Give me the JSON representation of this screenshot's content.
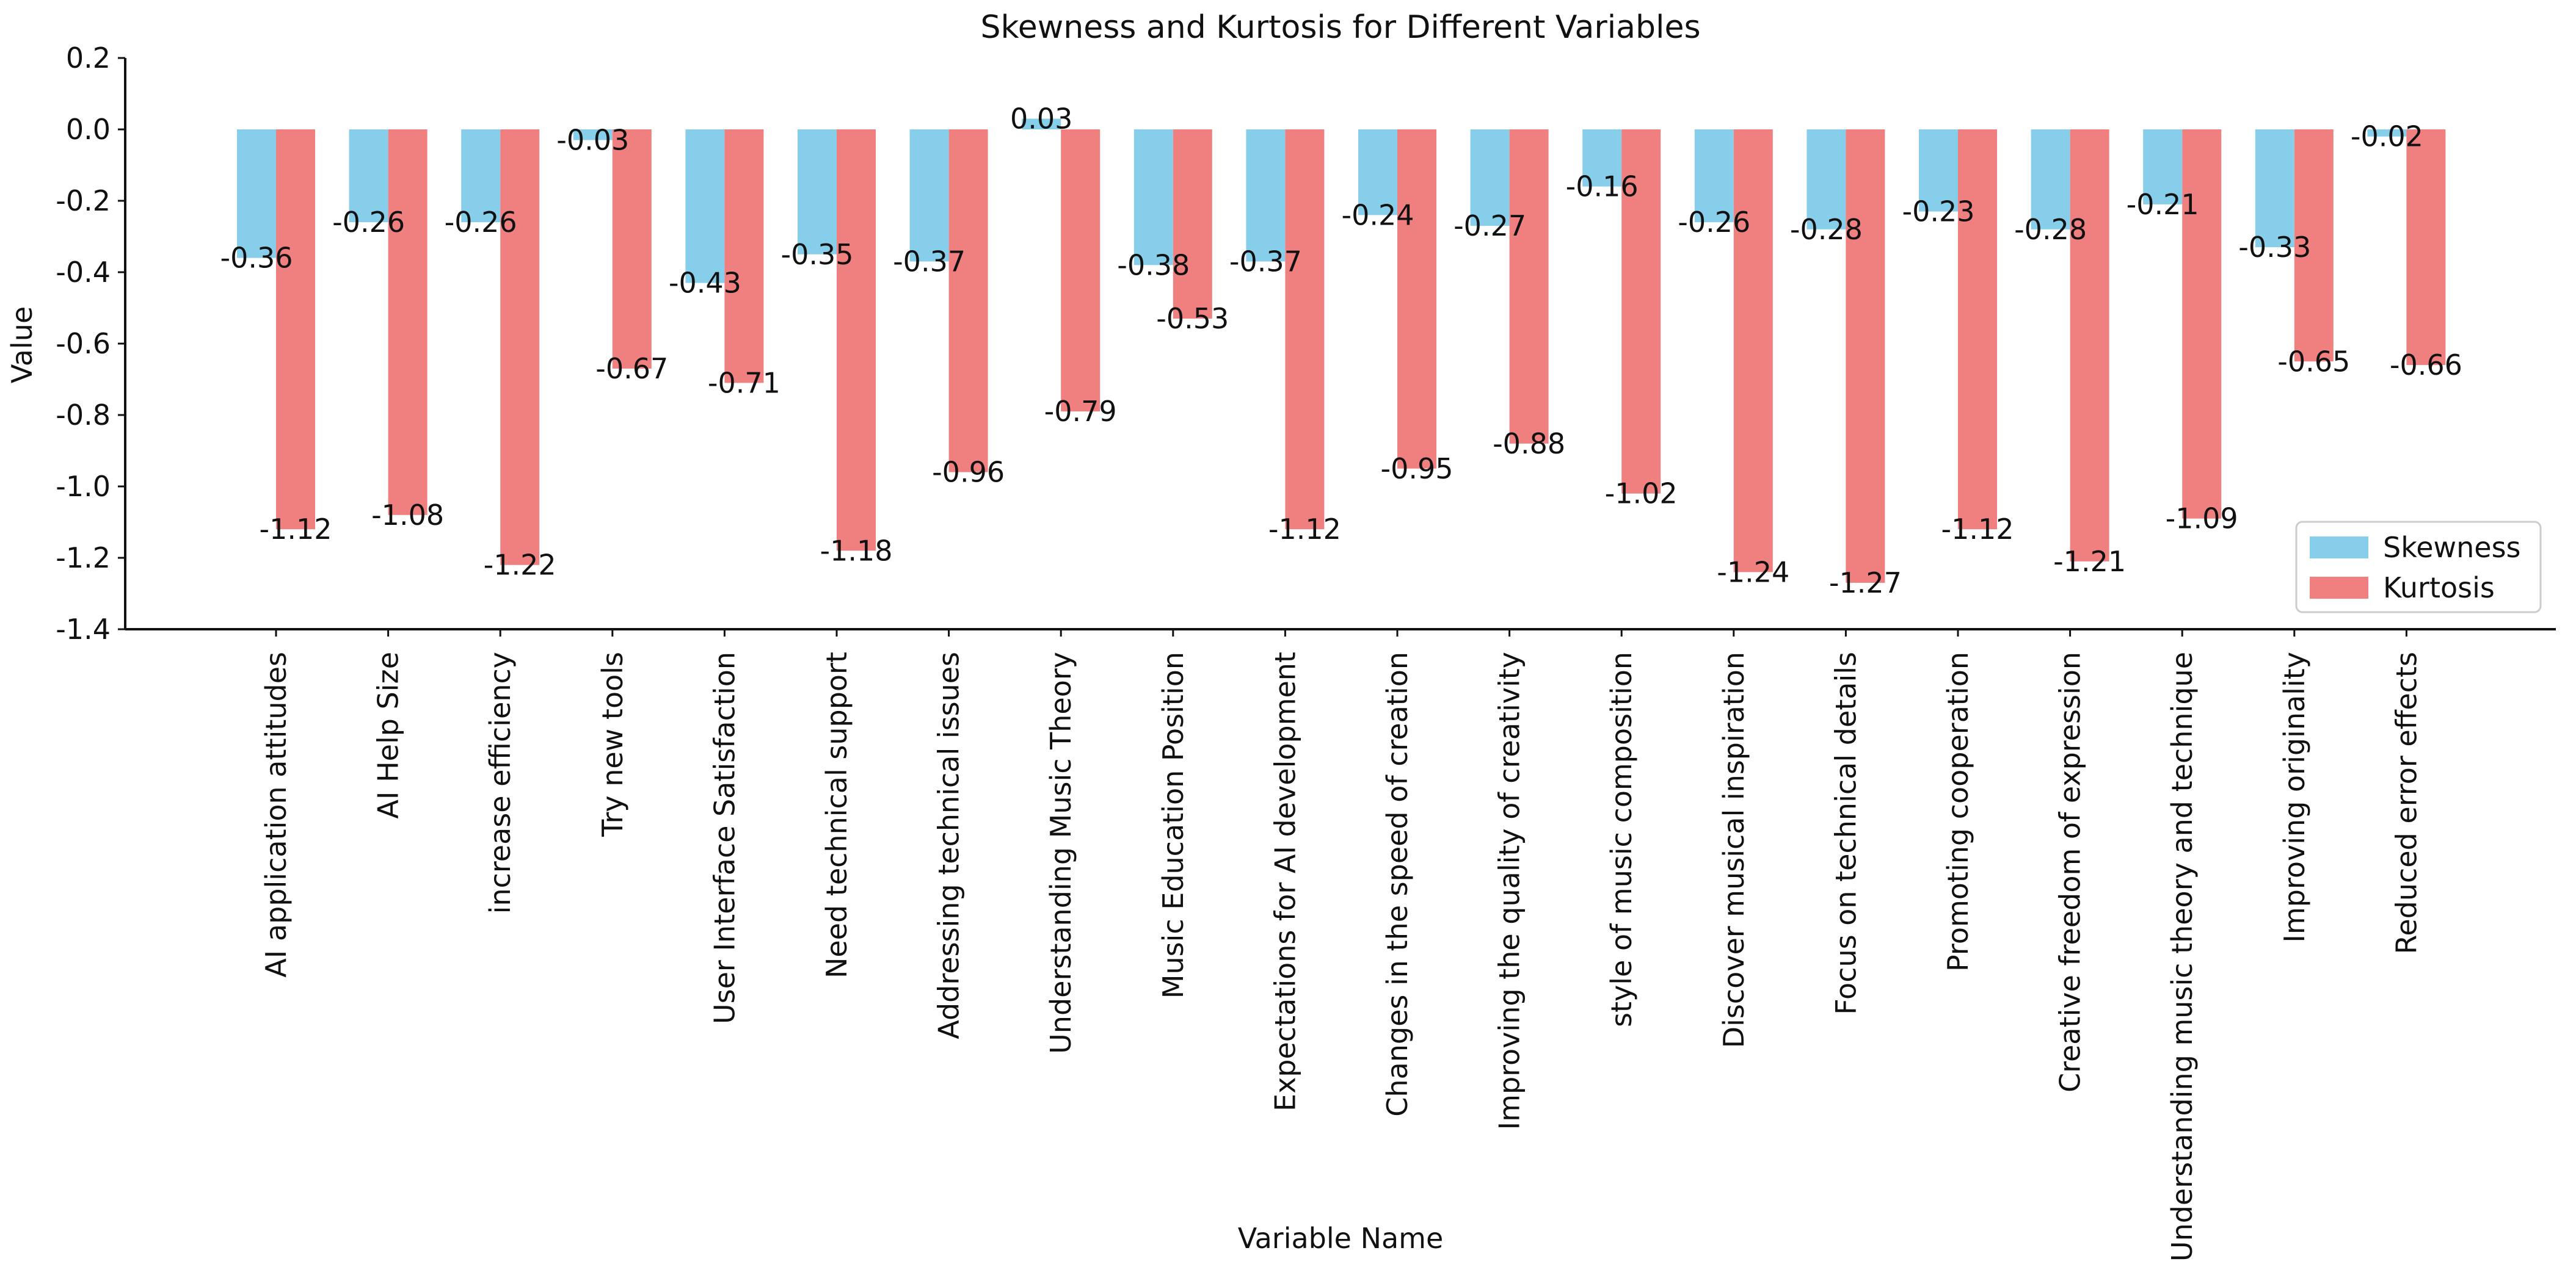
{
  "chart_data": {
    "type": "bar",
    "title": "Skewness and Kurtosis for Different Variables",
    "xlabel": "Variable Name",
    "ylabel": "Value",
    "ylim": [
      -1.4,
      0.2
    ],
    "yticks": [
      0.2,
      0.0,
      -0.2,
      -0.4,
      -0.6,
      -0.8,
      -1.0,
      -1.2,
      -1.4
    ],
    "ytick_labels": [
      "0.2",
      "0.0",
      "-0.2",
      "-0.4",
      "-0.6",
      "-0.8",
      "-1.0",
      "-1.2",
      "-1.4"
    ],
    "grid": false,
    "legend_position": "bottom-right",
    "categories": [
      "AI application attitudes",
      "AI Help Size",
      "increase efficiency",
      "Try new tools",
      "User Interface Satisfaction",
      "Need technical support",
      "Addressing technical issues",
      "Understanding Music Theory",
      "Music Education Position",
      "Expectations for AI development",
      "Changes in the speed of creation",
      "Improving the quality of creativity",
      "style of music composition",
      "Discover musical inspiration",
      "Focus on technical details",
      "Promoting cooperation",
      "Creative freedom of expression",
      "Understanding music theory and technique",
      "Improving originality",
      "Reduced error effects"
    ],
    "series": [
      {
        "name": "Skewness",
        "color": "#87ceeb",
        "values": [
          -0.36,
          -0.26,
          -0.26,
          -0.03,
          -0.43,
          -0.35,
          -0.37,
          0.03,
          -0.38,
          -0.37,
          -0.24,
          -0.27,
          -0.16,
          -0.26,
          -0.28,
          -0.23,
          -0.28,
          -0.21,
          -0.33,
          -0.02
        ],
        "labels": [
          "-0.36",
          "-0.26",
          "-0.26",
          "-0.03",
          "-0.43",
          "-0.35",
          "-0.37",
          "0.03",
          "-0.38",
          "-0.37",
          "-0.24",
          "-0.27",
          "-0.16",
          "-0.26",
          "-0.28",
          "-0.23",
          "-0.28",
          "-0.21",
          "-0.33",
          "-0.02"
        ]
      },
      {
        "name": "Kurtosis",
        "color": "#f08080",
        "values": [
          -1.12,
          -1.08,
          -1.22,
          -0.67,
          -0.71,
          -1.18,
          -0.96,
          -0.79,
          -0.53,
          -1.12,
          -0.95,
          -0.88,
          -1.02,
          -1.24,
          -1.27,
          -1.12,
          -1.21,
          -1.09,
          -0.65,
          -0.66
        ],
        "labels": [
          "-1.12",
          "-1.08",
          "-1.22",
          "-0.67",
          "-0.71",
          "-1.18",
          "-0.96",
          "-0.79",
          "-0.53",
          "-1.12",
          "-0.95",
          "-0.88",
          "-1.02",
          "-1.24",
          "-1.27",
          "-1.12",
          "-1.21",
          "-1.09",
          "-0.65",
          "-0.66"
        ]
      }
    ]
  }
}
